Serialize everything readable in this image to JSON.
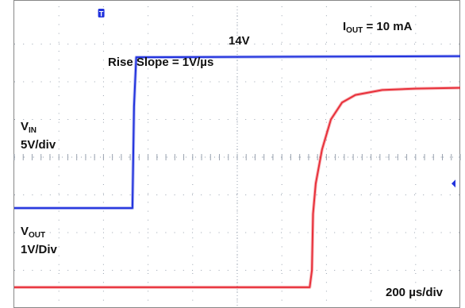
{
  "chart_data": {
    "type": "line",
    "title": "",
    "annotations": {
      "iout": {
        "main": "I",
        "sub": "OUT",
        "rest": " = 10 mA"
      },
      "level": "14V",
      "slope": "Rise Slope = 1V/µs",
      "vin": {
        "main": "V",
        "sub": "IN",
        "scale": "5V/div"
      },
      "vout": {
        "main": "V",
        "sub": "OUT",
        "scale": "1V/Div"
      },
      "timebase": "200 µs/div"
    },
    "trigger_marker": "T",
    "grid": true,
    "x_divisions": 10,
    "y_divisions": 8,
    "x_unit": "µs",
    "x_range": [
      0,
      2000
    ],
    "series": [
      {
        "color": "#2233dd",
        "points": [
          [
            0,
            2.65
          ],
          [
            530,
            2.65
          ],
          [
            537,
            5.35
          ],
          [
            547,
            6.65
          ],
          [
            2000,
            6.68
          ]
        ]
      },
      {
        "color": "#e8303a",
        "points": [
          [
            0,
            0.55
          ],
          [
            1325,
            0.55
          ],
          [
            1335,
            1.0
          ],
          [
            1340,
            2.5
          ],
          [
            1352,
            3.3
          ],
          [
            1380,
            4.2
          ],
          [
            1420,
            5.0
          ],
          [
            1470,
            5.45
          ],
          [
            1530,
            5.65
          ],
          [
            1650,
            5.78
          ],
          [
            1800,
            5.82
          ],
          [
            2000,
            5.84
          ]
        ]
      }
    ],
    "channel_markers": [
      {
        "color": "#2233dd",
        "y": 3.3
      }
    ],
    "colors": {
      "ch1": "#2233dd",
      "ch2": "#e8303a",
      "grid": "#9aa3b0",
      "frame": "#888888"
    }
  }
}
